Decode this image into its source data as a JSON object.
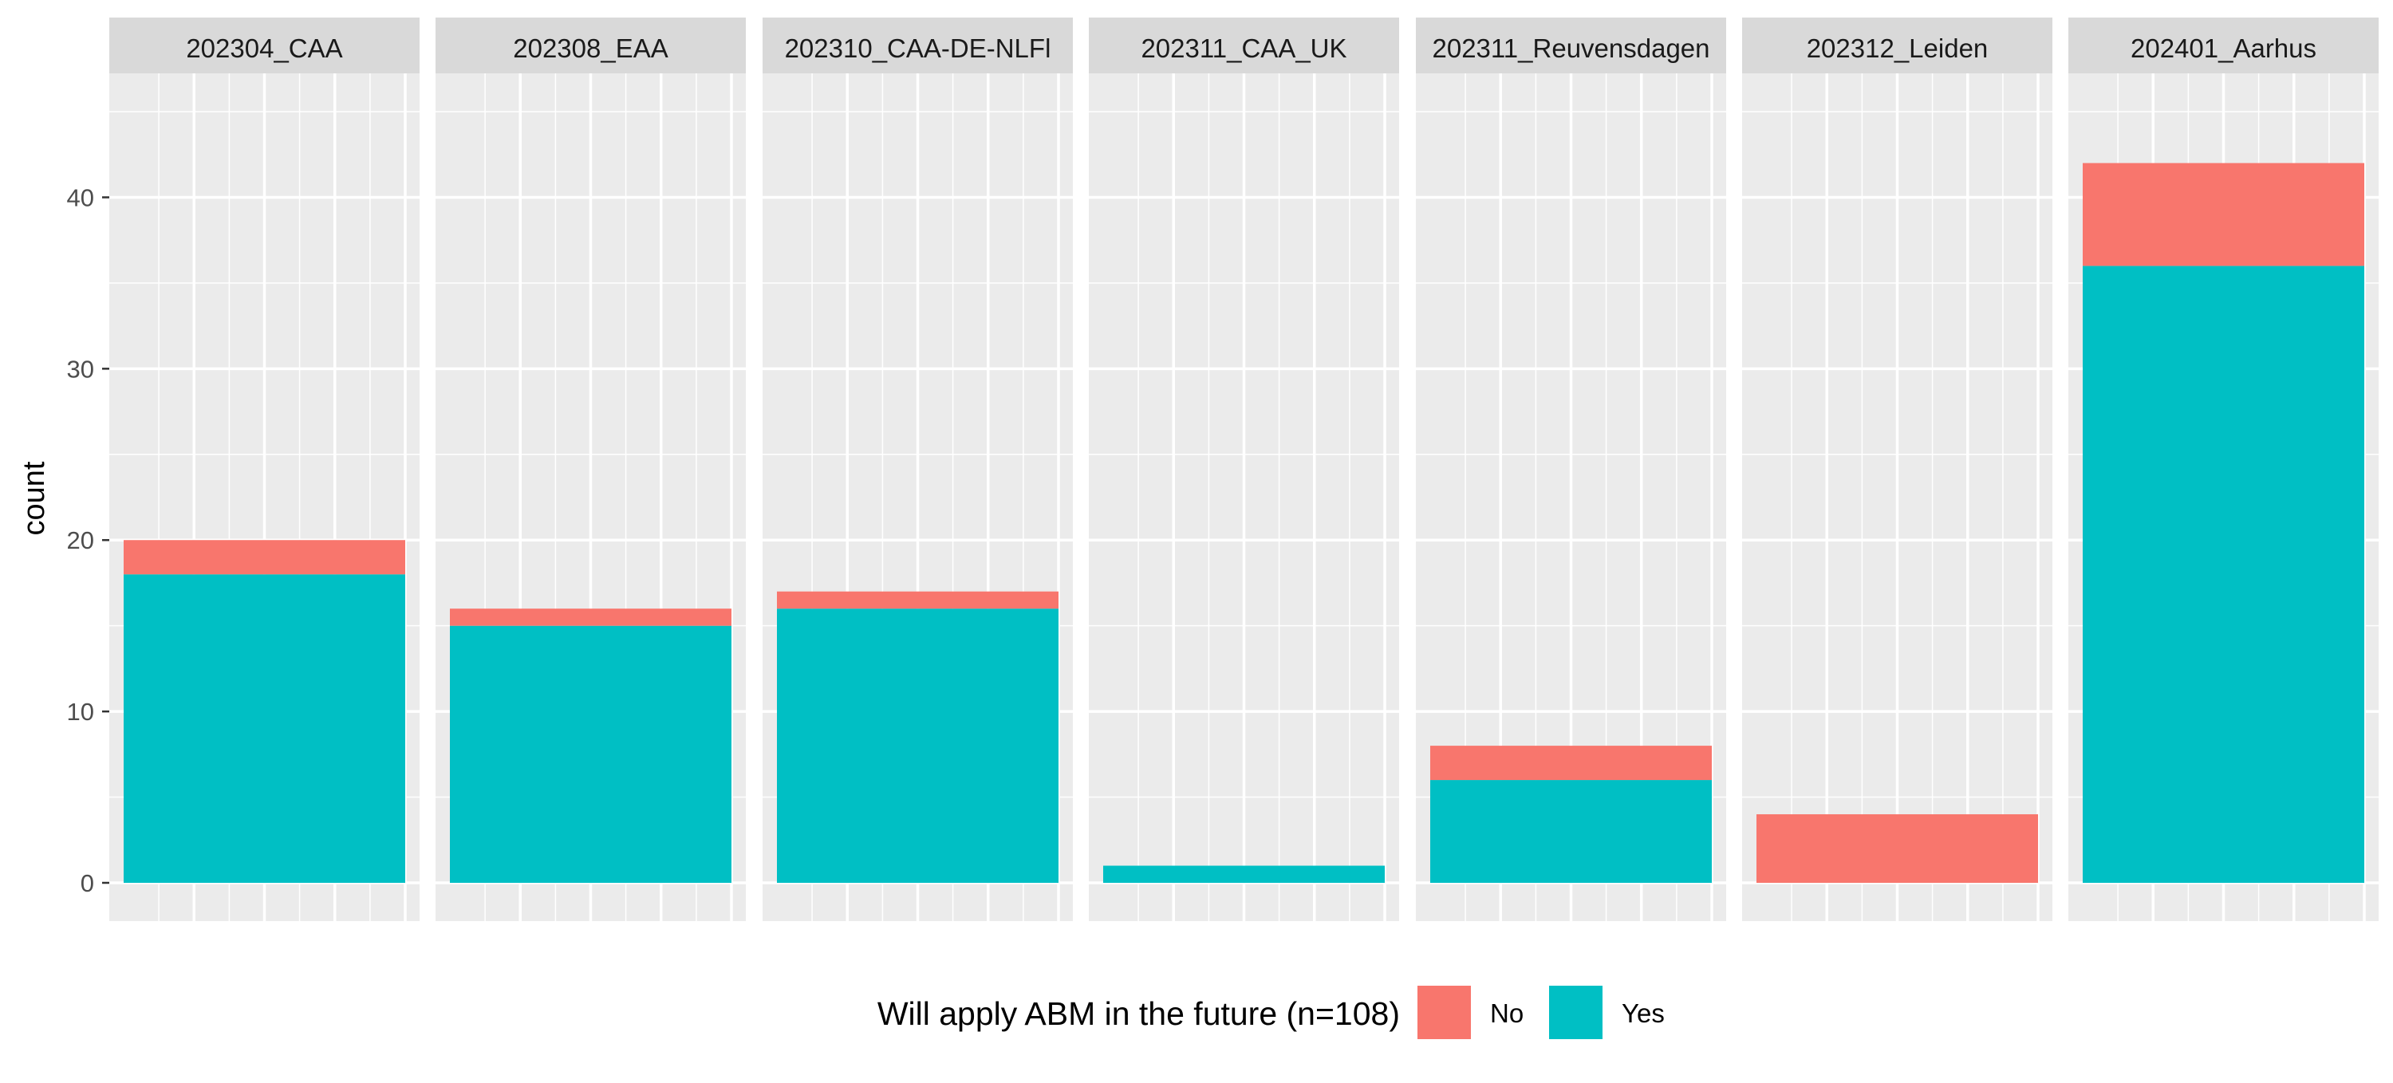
{
  "chart_data": {
    "type": "bar",
    "stacked": true,
    "facets": [
      "202304_CAA",
      "202308_EAA",
      "202310_CAA-DE-NLFl",
      "202311_CAA_UK",
      "202311_Reuvensdagen",
      "202312_Leiden",
      "202401_Aarhus"
    ],
    "series": [
      {
        "name": "No",
        "values": [
          2,
          1,
          1,
          0,
          2,
          4,
          6
        ]
      },
      {
        "name": "Yes",
        "values": [
          18,
          15,
          16,
          1,
          6,
          0,
          36
        ]
      }
    ],
    "ylabel": "count",
    "xlabel": "",
    "ylim": [
      0,
      45
    ],
    "yticks": [
      0,
      10,
      20,
      30,
      40
    ],
    "grid": true,
    "legend": {
      "title": "Will apply ABM in the future (n=108)",
      "position": "bottom",
      "entries": [
        "No",
        "Yes"
      ]
    },
    "colors": {
      "No": "#F8766D",
      "Yes": "#00BFC4",
      "panel": "#EBEBEB",
      "strip": "#D9D9D9",
      "grid": "#FFFFFF"
    }
  }
}
